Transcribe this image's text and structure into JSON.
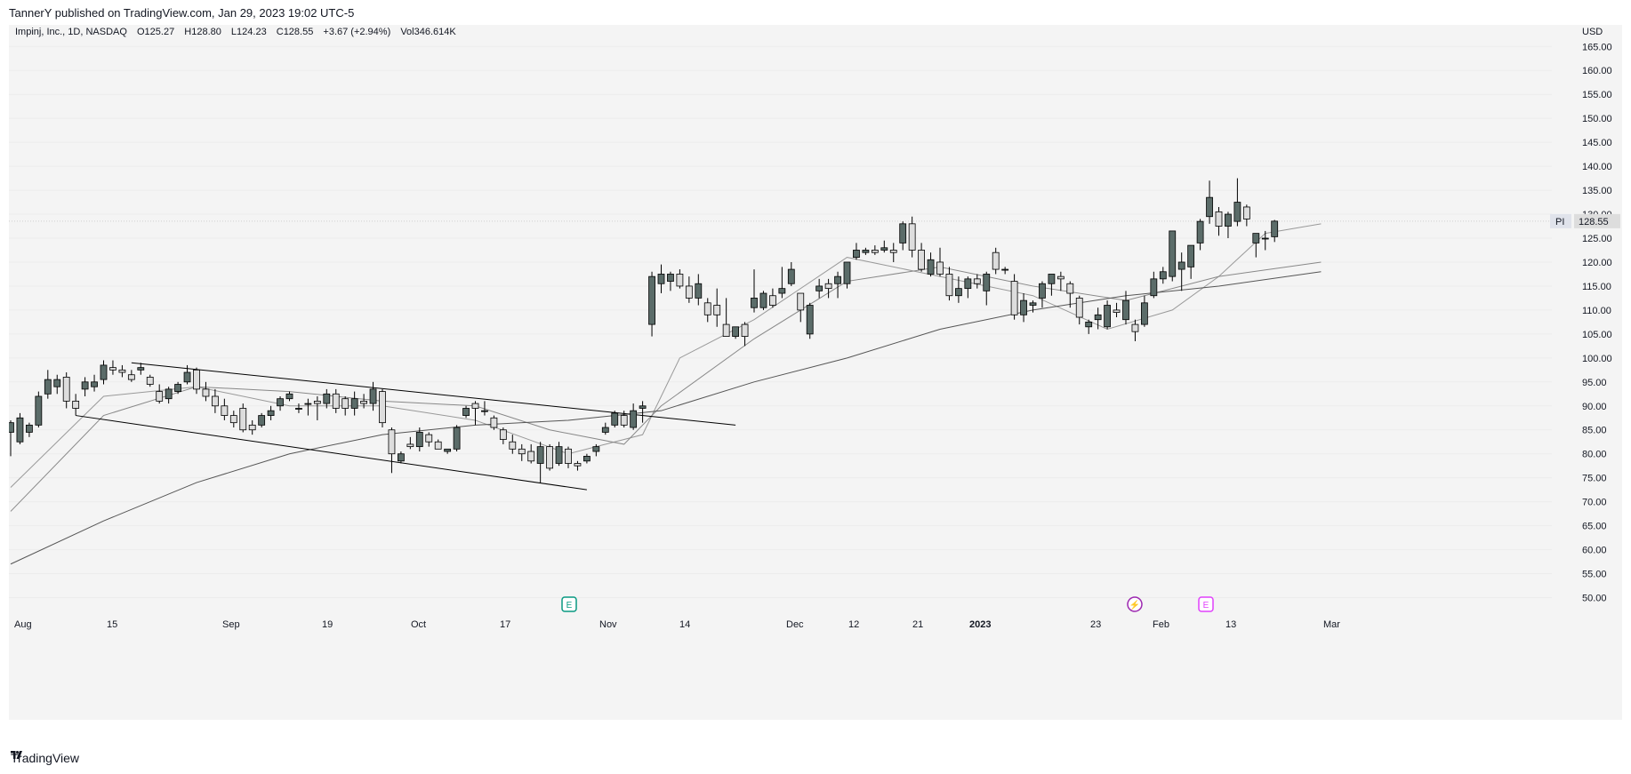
{
  "header": {
    "published": "TannerY published on TradingView.com, Jan 29, 2023 19:02 UTC-5"
  },
  "legend": {
    "symbol": "Impinj, Inc., 1D, NASDAQ",
    "open": "O125.27",
    "high": "H128.80",
    "low": "L124.23",
    "close": "C128.55",
    "change": "+3.67 (+2.94%)",
    "volume": "Vol346.614K"
  },
  "price_axis": {
    "currency": "USD",
    "last_price_label": "128.55",
    "symbol_tag": "PI"
  },
  "footer": {
    "brand": "TradingView"
  },
  "colors": {
    "up": "#5b6c69",
    "down": "#dddddd",
    "wick": "#000000",
    "trendline": "#000000",
    "ma": "#666666"
  },
  "events": [
    {
      "type": "earnings-icon",
      "label": "E",
      "date": "Oct 28",
      "color": "#089981"
    },
    {
      "type": "dividend-icon",
      "label": "⚡",
      "date": "Jan 31",
      "color": "#9c27b0"
    },
    {
      "type": "earnings-icon",
      "label": "E",
      "date": "Feb 8",
      "color": "#e040fb"
    }
  ],
  "chart_data": {
    "type": "candlestick",
    "x_ticks": [
      "Aug",
      "15",
      "Sep",
      "19",
      "Oct",
      "17",
      "Nov",
      "14",
      "Dec",
      "12",
      "21",
      "2023",
      "23",
      "Feb",
      "13",
      "Mar"
    ],
    "y_ticks": [
      "165.00",
      "160.00",
      "155.00",
      "150.00",
      "145.00",
      "140.00",
      "135.00",
      "130.00",
      "125.00",
      "120.00",
      "115.00",
      "110.00",
      "105.00",
      "100.00",
      "95.00",
      "90.00",
      "85.00",
      "80.00",
      "75.00",
      "70.00",
      "65.00",
      "60.00",
      "55.00",
      "50.00"
    ],
    "ylim": [
      47.5,
      169.5
    ],
    "candles": [
      {
        "o": 84.5,
        "h": 87.0,
        "l": 79.5,
        "c": 86.5
      },
      {
        "o": 82.5,
        "h": 88.5,
        "l": 82.0,
        "c": 87.5
      },
      {
        "o": 84.5,
        "h": 86.5,
        "l": 83.5,
        "c": 86.0
      },
      {
        "o": 86.0,
        "h": 93.0,
        "l": 85.5,
        "c": 92.0
      },
      {
        "o": 92.5,
        "h": 97.5,
        "l": 91.5,
        "c": 95.5
      },
      {
        "o": 94.0,
        "h": 96.5,
        "l": 92.5,
        "c": 95.5
      },
      {
        "o": 96.0,
        "h": 97.0,
        "l": 89.5,
        "c": 91.0
      },
      {
        "o": 91.0,
        "h": 92.5,
        "l": 88.0,
        "c": 89.5
      },
      {
        "o": 93.5,
        "h": 96.0,
        "l": 92.0,
        "c": 95.0
      },
      {
        "o": 94.0,
        "h": 96.5,
        "l": 93.0,
        "c": 95.0
      },
      {
        "o": 95.5,
        "h": 99.5,
        "l": 94.5,
        "c": 98.5
      },
      {
        "o": 98.0,
        "h": 99.5,
        "l": 96.5,
        "c": 97.5
      },
      {
        "o": 97.5,
        "h": 98.5,
        "l": 96.0,
        "c": 97.0
      },
      {
        "o": 96.5,
        "h": 97.5,
        "l": 95.0,
        "c": 95.5
      },
      {
        "o": 97.5,
        "h": 99.0,
        "l": 96.5,
        "c": 98.0
      },
      {
        "o": 96.0,
        "h": 96.5,
        "l": 94.0,
        "c": 94.5
      },
      {
        "o": 93.0,
        "h": 94.5,
        "l": 90.5,
        "c": 91.0
      },
      {
        "o": 91.5,
        "h": 94.0,
        "l": 90.5,
        "c": 93.5
      },
      {
        "o": 93.0,
        "h": 95.0,
        "l": 92.5,
        "c": 94.5
      },
      {
        "o": 95.0,
        "h": 98.5,
        "l": 94.5,
        "c": 97.0
      },
      {
        "o": 97.5,
        "h": 98.0,
        "l": 92.5,
        "c": 93.5
      },
      {
        "o": 93.5,
        "h": 95.0,
        "l": 91.0,
        "c": 92.0
      },
      {
        "o": 92.0,
        "h": 93.5,
        "l": 88.5,
        "c": 90.0
      },
      {
        "o": 90.0,
        "h": 91.5,
        "l": 87.0,
        "c": 88.0
      },
      {
        "o": 88.0,
        "h": 89.0,
        "l": 85.5,
        "c": 86.5
      },
      {
        "o": 89.5,
        "h": 90.5,
        "l": 84.5,
        "c": 85.0
      },
      {
        "o": 86.0,
        "h": 87.0,
        "l": 84.0,
        "c": 85.0
      },
      {
        "o": 86.0,
        "h": 88.5,
        "l": 85.5,
        "c": 88.0
      },
      {
        "o": 88.0,
        "h": 90.0,
        "l": 87.0,
        "c": 89.0
      },
      {
        "o": 90.0,
        "h": 92.0,
        "l": 89.0,
        "c": 91.5
      },
      {
        "o": 91.5,
        "h": 93.0,
        "l": 91.0,
        "c": 92.5
      },
      {
        "o": 89.5,
        "h": 90.5,
        "l": 88.5,
        "c": 89.5
      },
      {
        "o": 90.5,
        "h": 91.5,
        "l": 88.0,
        "c": 90.5
      },
      {
        "o": 91.0,
        "h": 92.0,
        "l": 87.0,
        "c": 90.5
      },
      {
        "o": 90.5,
        "h": 93.5,
        "l": 89.5,
        "c": 92.5
      },
      {
        "o": 92.5,
        "h": 93.5,
        "l": 88.5,
        "c": 89.5
      },
      {
        "o": 91.5,
        "h": 92.0,
        "l": 88.0,
        "c": 89.5
      },
      {
        "o": 89.5,
        "h": 93.0,
        "l": 88.0,
        "c": 91.5
      },
      {
        "o": 91.0,
        "h": 92.5,
        "l": 89.5,
        "c": 90.5
      },
      {
        "o": 90.5,
        "h": 95.0,
        "l": 89.0,
        "c": 93.5
      },
      {
        "o": 93.0,
        "h": 93.5,
        "l": 85.5,
        "c": 86.5
      },
      {
        "o": 85.0,
        "h": 85.5,
        "l": 76.0,
        "c": 80.0
      },
      {
        "o": 78.5,
        "h": 80.5,
        "l": 78.0,
        "c": 80.0
      },
      {
        "o": 82.0,
        "h": 83.5,
        "l": 81.0,
        "c": 81.5
      },
      {
        "o": 81.5,
        "h": 85.5,
        "l": 80.5,
        "c": 84.5
      },
      {
        "o": 84.0,
        "h": 84.5,
        "l": 81.5,
        "c": 82.5
      },
      {
        "o": 82.5,
        "h": 83.0,
        "l": 81.5,
        "c": 81.0
      },
      {
        "o": 80.5,
        "h": 81.0,
        "l": 80.0,
        "c": 81.0
      },
      {
        "o": 81.0,
        "h": 86.0,
        "l": 80.5,
        "c": 85.5
      },
      {
        "o": 88.0,
        "h": 90.0,
        "l": 87.5,
        "c": 89.5
      },
      {
        "o": 90.5,
        "h": 91.0,
        "l": 86.0,
        "c": 89.5
      },
      {
        "o": 89.0,
        "h": 91.0,
        "l": 88.0,
        "c": 89.0
      },
      {
        "o": 87.5,
        "h": 88.0,
        "l": 85.0,
        "c": 85.5
      },
      {
        "o": 85.0,
        "h": 85.5,
        "l": 82.0,
        "c": 83.0
      },
      {
        "o": 82.5,
        "h": 84.0,
        "l": 80.0,
        "c": 81.0
      },
      {
        "o": 81.0,
        "h": 82.0,
        "l": 78.5,
        "c": 80.0
      },
      {
        "o": 80.5,
        "h": 82.0,
        "l": 78.0,
        "c": 78.5
      },
      {
        "o": 78.0,
        "h": 82.5,
        "l": 74.0,
        "c": 81.5
      },
      {
        "o": 81.5,
        "h": 82.0,
        "l": 76.5,
        "c": 77.0
      },
      {
        "o": 78.0,
        "h": 82.5,
        "l": 77.5,
        "c": 81.5
      },
      {
        "o": 81.0,
        "h": 81.5,
        "l": 77.0,
        "c": 78.0
      },
      {
        "o": 78.0,
        "h": 78.5,
        "l": 76.5,
        "c": 77.5
      },
      {
        "o": 78.5,
        "h": 80.0,
        "l": 78.0,
        "c": 79.5
      },
      {
        "o": 80.5,
        "h": 82.0,
        "l": 79.5,
        "c": 81.5
      },
      {
        "o": 84.5,
        "h": 86.5,
        "l": 84.0,
        "c": 85.5
      },
      {
        "o": 86.0,
        "h": 89.0,
        "l": 85.5,
        "c": 88.5
      },
      {
        "o": 88.0,
        "h": 89.0,
        "l": 85.5,
        "c": 86.0
      },
      {
        "o": 85.5,
        "h": 90.5,
        "l": 85.0,
        "c": 89.0
      },
      {
        "o": 89.5,
        "h": 91.0,
        "l": 86.5,
        "c": 90.0
      },
      {
        "o": 107.0,
        "h": 118.0,
        "l": 104.5,
        "c": 117.0
      },
      {
        "o": 115.5,
        "h": 119.5,
        "l": 113.5,
        "c": 117.5
      },
      {
        "o": 116.0,
        "h": 118.0,
        "l": 114.0,
        "c": 117.5
      },
      {
        "o": 117.5,
        "h": 118.5,
        "l": 114.5,
        "c": 115.0
      },
      {
        "o": 115.0,
        "h": 117.0,
        "l": 111.5,
        "c": 112.5
      },
      {
        "o": 112.5,
        "h": 117.5,
        "l": 111.0,
        "c": 115.5
      },
      {
        "o": 111.5,
        "h": 112.5,
        "l": 107.5,
        "c": 109.0
      },
      {
        "o": 111.0,
        "h": 114.5,
        "l": 106.5,
        "c": 109.0
      },
      {
        "o": 107.0,
        "h": 112.5,
        "l": 105.5,
        "c": 104.5
      },
      {
        "o": 104.5,
        "h": 106.0,
        "l": 104.0,
        "c": 106.5
      },
      {
        "o": 107.0,
        "h": 107.5,
        "l": 102.5,
        "c": 104.5
      },
      {
        "o": 110.5,
        "h": 118.5,
        "l": 109.5,
        "c": 112.5
      },
      {
        "o": 110.5,
        "h": 114.0,
        "l": 110.0,
        "c": 113.5
      },
      {
        "o": 113.0,
        "h": 114.5,
        "l": 110.5,
        "c": 111.0
      },
      {
        "o": 113.5,
        "h": 119.0,
        "l": 112.5,
        "c": 114.5
      },
      {
        "o": 115.5,
        "h": 120.0,
        "l": 115.0,
        "c": 118.5
      },
      {
        "o": 113.5,
        "h": 113.5,
        "l": 107.5,
        "c": 110.0
      },
      {
        "o": 105.0,
        "h": 111.5,
        "l": 104.0,
        "c": 111.0
      },
      {
        "o": 114.0,
        "h": 116.5,
        "l": 112.5,
        "c": 115.0
      },
      {
        "o": 115.5,
        "h": 116.5,
        "l": 112.5,
        "c": 114.5
      },
      {
        "o": 115.5,
        "h": 118.0,
        "l": 112.5,
        "c": 117.0
      },
      {
        "o": 115.5,
        "h": 120.0,
        "l": 114.5,
        "c": 120.0
      },
      {
        "o": 121.0,
        "h": 124.0,
        "l": 120.5,
        "c": 122.5
      },
      {
        "o": 122.0,
        "h": 123.0,
        "l": 121.5,
        "c": 122.5
      },
      {
        "o": 122.5,
        "h": 123.5,
        "l": 121.5,
        "c": 122.0
      },
      {
        "o": 122.5,
        "h": 124.5,
        "l": 122.0,
        "c": 123.0
      },
      {
        "o": 122.5,
        "h": 124.0,
        "l": 120.0,
        "c": 122.0
      },
      {
        "o": 124.0,
        "h": 128.5,
        "l": 122.5,
        "c": 128.0
      },
      {
        "o": 128.0,
        "h": 129.5,
        "l": 121.0,
        "c": 122.5
      },
      {
        "o": 122.5,
        "h": 124.0,
        "l": 118.0,
        "c": 118.5
      },
      {
        "o": 117.5,
        "h": 122.0,
        "l": 117.0,
        "c": 120.5
      },
      {
        "o": 120.0,
        "h": 123.0,
        "l": 117.0,
        "c": 117.5
      },
      {
        "o": 117.5,
        "h": 119.0,
        "l": 112.0,
        "c": 113.0
      },
      {
        "o": 113.0,
        "h": 117.0,
        "l": 111.5,
        "c": 114.5
      },
      {
        "o": 114.5,
        "h": 117.0,
        "l": 112.5,
        "c": 116.5
      },
      {
        "o": 116.5,
        "h": 117.5,
        "l": 114.5,
        "c": 115.5
      },
      {
        "o": 114.0,
        "h": 118.0,
        "l": 111.0,
        "c": 117.5
      },
      {
        "o": 122.0,
        "h": 123.0,
        "l": 117.5,
        "c": 118.5
      },
      {
        "o": 118.5,
        "h": 119.0,
        "l": 117.5,
        "c": 118.5
      },
      {
        "o": 116.0,
        "h": 117.5,
        "l": 108.0,
        "c": 109.0
      },
      {
        "o": 109.0,
        "h": 113.5,
        "l": 107.5,
        "c": 112.0
      },
      {
        "o": 111.0,
        "h": 112.0,
        "l": 109.5,
        "c": 111.5
      },
      {
        "o": 112.5,
        "h": 116.0,
        "l": 110.5,
        "c": 115.5
      },
      {
        "o": 115.5,
        "h": 117.0,
        "l": 113.0,
        "c": 117.5
      },
      {
        "o": 117.0,
        "h": 118.0,
        "l": 114.0,
        "c": 116.5
      },
      {
        "o": 115.5,
        "h": 116.0,
        "l": 110.5,
        "c": 113.5
      },
      {
        "o": 112.5,
        "h": 113.0,
        "l": 107.0,
        "c": 108.5
      },
      {
        "o": 106.5,
        "h": 108.0,
        "l": 105.0,
        "c": 107.5
      },
      {
        "o": 108.0,
        "h": 110.5,
        "l": 106.0,
        "c": 109.0
      },
      {
        "o": 106.5,
        "h": 112.0,
        "l": 106.0,
        "c": 111.0
      },
      {
        "o": 110.0,
        "h": 111.5,
        "l": 108.5,
        "c": 109.5
      },
      {
        "o": 108.0,
        "h": 114.0,
        "l": 107.0,
        "c": 112.0
      },
      {
        "o": 107.0,
        "h": 108.0,
        "l": 103.5,
        "c": 105.5
      },
      {
        "o": 107.0,
        "h": 113.0,
        "l": 106.5,
        "c": 111.5
      },
      {
        "o": 113.0,
        "h": 118.0,
        "l": 112.5,
        "c": 116.5
      },
      {
        "o": 116.5,
        "h": 119.0,
        "l": 115.5,
        "c": 118.0
      },
      {
        "o": 117.0,
        "h": 126.5,
        "l": 116.0,
        "c": 126.5
      },
      {
        "o": 118.5,
        "h": 122.0,
        "l": 114.0,
        "c": 120.0
      },
      {
        "o": 119.0,
        "h": 123.0,
        "l": 116.5,
        "c": 123.5
      },
      {
        "o": 124.0,
        "h": 129.0,
        "l": 122.5,
        "c": 128.5
      },
      {
        "o": 129.5,
        "h": 137.0,
        "l": 128.0,
        "c": 133.5
      },
      {
        "o": 130.5,
        "h": 131.5,
        "l": 125.5,
        "c": 127.5
      },
      {
        "o": 127.5,
        "h": 130.5,
        "l": 125.0,
        "c": 130.0
      },
      {
        "o": 128.5,
        "h": 137.5,
        "l": 127.5,
        "c": 132.5
      },
      {
        "o": 131.5,
        "h": 132.0,
        "l": 127.5,
        "c": 129.0
      },
      {
        "o": 124.0,
        "h": 126.0,
        "l": 121.0,
        "c": 126.0
      },
      {
        "o": 125.0,
        "h": 126.5,
        "l": 122.5,
        "c": 125.0
      },
      {
        "o": 125.3,
        "h": 128.8,
        "l": 124.2,
        "c": 128.55
      }
    ],
    "moving_averages": [
      {
        "x": [
          0,
          10,
          20,
          30,
          40,
          50,
          60,
          68,
          72,
          80,
          90,
          100,
          110,
          118,
          125,
          130,
          135,
          141
        ],
        "values": [
          73,
          92,
          94,
          90,
          90,
          87,
          80,
          84,
          100,
          108,
          121,
          117,
          113,
          106,
          110,
          117,
          126,
          128
        ]
      },
      {
        "x": [
          0,
          10,
          20,
          30,
          40,
          50,
          58,
          66,
          70,
          80,
          90,
          100,
          110,
          120,
          130,
          141
        ],
        "values": [
          68,
          88,
          94,
          93,
          91,
          90,
          85,
          82,
          90,
          104,
          116,
          119,
          115,
          112,
          117,
          120
        ]
      },
      {
        "x": [
          0,
          10,
          20,
          30,
          40,
          50,
          60,
          70,
          80,
          90,
          100,
          110,
          120,
          130,
          141
        ],
        "values": [
          57,
          66,
          74,
          80,
          84,
          86,
          87,
          89,
          95,
          100,
          106,
          110,
          113,
          115,
          118
        ]
      }
    ],
    "trendlines": [
      {
        "x": [
          13,
          78
        ],
        "values": [
          99,
          86
        ]
      },
      {
        "x": [
          7,
          62
        ],
        "values": [
          88,
          72.5
        ]
      }
    ]
  }
}
